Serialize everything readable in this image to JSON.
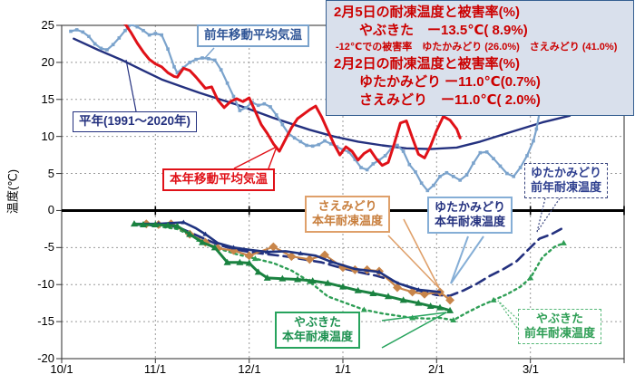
{
  "info_box": {
    "lines": [
      "2月5日の耐凍温度と被害率(%)",
      "やぶきた　ー13.5℃( 8.9%)",
      "-12℃での被害率　ゆたかみどり (26.0%)　さえみどり (41.0%)",
      "2月2日の耐凍温度と被害率(%)",
      "ゆたかみどり ー11.0℃(0.7%)",
      "さえみどり　ー11.0℃( 2.0%)"
    ]
  },
  "labels": {
    "prev_moving": "前年移動平均気温",
    "normal": "平年(1991～2020年)",
    "this_moving": "本年移動平均気温",
    "sae_this": "さえみどり\n本年耐凍温度",
    "yutaka_this": "ゆたかみどり\n本年耐凍温度",
    "yutaka_prev": "ゆたかみどり\n前年耐凍温度",
    "yabu_this": "やぶきた\n本年耐凍温度",
    "yabu_prev": "やぶきた\n前年耐凍温度"
  },
  "chart_data": {
    "type": "line",
    "ylabel": "温度(℃)",
    "ylim": [
      -20,
      25
    ],
    "grid": true,
    "x_axis": {
      "tick_labels": [
        "10/1",
        "11/1",
        "12/1",
        "1/1",
        "2/1",
        "3/1"
      ],
      "month_start_days": [
        0,
        31,
        61,
        92,
        123,
        151,
        182
      ]
    },
    "y_axis": {
      "label": "温度(℃)",
      "tick_labels": [
        "25",
        "20",
        "15",
        "10",
        "5",
        "0",
        "-5",
        "-10",
        "-15",
        "-20"
      ],
      "tick_values": [
        25,
        20,
        15,
        10,
        5,
        0,
        -5,
        -10,
        -15,
        -20
      ],
      "gridline_values": [
        20,
        15,
        10,
        5,
        -5,
        -10,
        -15
      ]
    },
    "series": [
      {
        "id": "heinen",
        "name": "平年(1991～2020年)",
        "color": "#24317F",
        "style": "solid",
        "width": 2.4,
        "marker": "none",
        "points": [
          [
            4,
            23.2
          ],
          [
            12,
            21.7
          ],
          [
            20,
            20.3
          ],
          [
            27,
            18.9
          ],
          [
            33,
            17.7
          ],
          [
            39,
            16.8
          ],
          [
            45,
            15.9
          ],
          [
            51,
            15.1
          ],
          [
            57,
            14.3
          ],
          [
            63,
            13.4
          ],
          [
            69,
            12.5
          ],
          [
            75,
            11.7
          ],
          [
            81,
            10.9
          ],
          [
            89,
            10.0
          ],
          [
            97,
            9.3
          ],
          [
            105,
            8.8
          ],
          [
            113,
            8.4
          ],
          [
            121,
            8.3
          ],
          [
            129,
            8.5
          ],
          [
            136,
            9.3
          ],
          [
            146,
            10.7
          ],
          [
            155,
            11.9
          ],
          [
            164,
            12.8
          ]
        ]
      },
      {
        "id": "prev_year_moving_avg",
        "name": "前年移動平均気温",
        "color": "#7BA3CC",
        "style": "solid",
        "width": 2.2,
        "marker": "square",
        "marker_size": 3.6,
        "marker_every": 1,
        "points": [
          [
            3,
            24.2
          ],
          [
            5,
            24.4
          ],
          [
            7,
            24.1
          ],
          [
            9,
            23.5
          ],
          [
            11,
            22.5
          ],
          [
            13,
            21.9
          ],
          [
            15,
            21.7
          ],
          [
            17,
            22.4
          ],
          [
            19,
            23.3
          ],
          [
            21,
            24.3
          ],
          [
            23,
            25.1
          ],
          [
            25,
            24.8
          ],
          [
            27,
            24.3
          ],
          [
            29,
            23.7
          ],
          [
            31,
            23.9
          ],
          [
            33,
            23.7
          ],
          [
            35,
            21.8
          ],
          [
            37,
            19.4
          ],
          [
            38,
            18.6
          ],
          [
            40,
            19.3
          ],
          [
            42,
            20.0
          ],
          [
            44,
            20.4
          ],
          [
            46,
            20.6
          ],
          [
            48,
            20.5
          ],
          [
            50,
            20.3
          ],
          [
            52,
            19.0
          ],
          [
            54,
            17.2
          ],
          [
            56,
            15.4
          ],
          [
            58,
            13.5
          ],
          [
            60,
            13.9
          ],
          [
            62,
            14.6
          ],
          [
            64,
            14.2
          ],
          [
            66,
            14.4
          ],
          [
            68,
            14.0
          ],
          [
            70,
            12.9
          ],
          [
            72,
            11.6
          ],
          [
            74,
            10.4
          ],
          [
            76,
            9.8
          ],
          [
            78,
            9.3
          ],
          [
            80,
            8.8
          ],
          [
            82,
            8.7
          ],
          [
            84,
            8.9
          ],
          [
            86,
            9.4
          ],
          [
            88,
            9.0
          ],
          [
            90,
            8.6
          ],
          [
            92,
            8.2
          ],
          [
            94,
            7.9
          ],
          [
            96,
            6.9
          ],
          [
            98,
            5.8
          ],
          [
            100,
            5.5
          ],
          [
            102,
            6.3
          ],
          [
            104,
            6.8
          ],
          [
            106,
            7.4
          ],
          [
            108,
            8.4
          ],
          [
            110,
            8.8
          ],
          [
            112,
            8.0
          ],
          [
            114,
            6.2
          ],
          [
            116,
            5.2
          ],
          [
            118,
            3.7
          ],
          [
            120,
            2.7
          ],
          [
            122,
            3.4
          ],
          [
            124,
            4.6
          ],
          [
            126,
            5.1
          ],
          [
            128,
            4.6
          ],
          [
            130,
            4.1
          ],
          [
            132,
            4.8
          ],
          [
            134,
            6.4
          ],
          [
            136,
            7.8
          ],
          [
            138,
            7.9
          ],
          [
            140,
            7.0
          ],
          [
            142,
            6.0
          ],
          [
            144,
            5.0
          ],
          [
            146,
            4.6
          ],
          [
            148,
            5.8
          ],
          [
            150,
            7.4
          ],
          [
            152,
            9.4
          ],
          [
            153,
            11.0
          ],
          [
            154,
            13.2
          ]
        ]
      },
      {
        "id": "this_year_moving_avg",
        "name": "本年移動平均気温",
        "color": "#E01118",
        "style": "solid",
        "width": 3,
        "marker": "none",
        "points": [
          [
            20,
            25.4
          ],
          [
            21,
            25.2
          ],
          [
            23,
            24.0
          ],
          [
            25,
            22.6
          ],
          [
            27,
            21.4
          ],
          [
            29,
            20.4
          ],
          [
            31,
            19.8
          ],
          [
            33,
            19.4
          ],
          [
            35,
            18.6
          ],
          [
            37,
            18.1
          ],
          [
            38,
            18.0
          ],
          [
            40,
            19.2
          ],
          [
            42,
            18.9
          ],
          [
            44,
            18.0
          ],
          [
            46,
            17.0
          ],
          [
            47,
            16.5
          ],
          [
            49,
            16.7
          ],
          [
            51,
            14.9
          ],
          [
            53,
            13.9
          ],
          [
            55,
            14.7
          ],
          [
            57,
            15.1
          ],
          [
            59,
            14.7
          ],
          [
            61,
            15.2
          ],
          [
            63,
            13.4
          ],
          [
            65,
            11.6
          ],
          [
            67,
            10.4
          ],
          [
            69,
            9.0
          ],
          [
            71,
            8.0
          ],
          [
            73,
            9.6
          ],
          [
            75,
            11.2
          ],
          [
            77,
            12.4
          ],
          [
            79,
            13.0
          ],
          [
            81,
            13.6
          ],
          [
            83,
            14.1
          ],
          [
            85,
            12.6
          ],
          [
            87,
            10.8
          ],
          [
            89,
            9.0
          ],
          [
            91,
            7.5
          ],
          [
            93,
            8.6
          ],
          [
            95,
            8.0
          ],
          [
            97,
            6.8
          ],
          [
            99,
            7.7
          ],
          [
            101,
            8.2
          ],
          [
            103,
            7.0
          ],
          [
            105,
            6.1
          ],
          [
            107,
            6.5
          ],
          [
            109,
            9.0
          ],
          [
            111,
            11.8
          ],
          [
            113,
            12.1
          ],
          [
            115,
            9.8
          ],
          [
            117,
            7.6
          ],
          [
            119,
            7.1
          ],
          [
            121,
            8.7
          ],
          [
            123,
            10.8
          ],
          [
            125,
            12.7
          ],
          [
            127,
            12.2
          ],
          [
            129,
            11.0
          ],
          [
            130,
            9.8
          ]
        ]
      },
      {
        "id": "yabukita_prev_year",
        "name": "やぶきた前年耐凍温度",
        "color": "#2E9E55",
        "style": "dotted",
        "width": 2.4,
        "marker": "triangle",
        "marker_size": 5,
        "marker_every": 3,
        "points": [
          [
            24,
            -1.8
          ],
          [
            31,
            -2.1
          ],
          [
            38,
            -2.5
          ],
          [
            45,
            -3.9
          ],
          [
            51,
            -5.1
          ],
          [
            57,
            -5.9
          ],
          [
            63,
            -6.5
          ],
          [
            69,
            -7.1
          ],
          [
            75,
            -8.1
          ],
          [
            81,
            -9.6
          ],
          [
            87,
            -11.6
          ],
          [
            93,
            -12.5
          ],
          [
            99,
            -13.4
          ],
          [
            105,
            -13.9
          ],
          [
            110,
            -14.2
          ],
          [
            115,
            -14.5
          ],
          [
            120,
            -14.6
          ],
          [
            124,
            -14.5
          ],
          [
            128,
            -14.8
          ],
          [
            132,
            -13.8
          ],
          [
            136,
            -12.9
          ],
          [
            140,
            -12.1
          ],
          [
            144,
            -11.3
          ],
          [
            148,
            -10.3
          ],
          [
            151,
            -9.1
          ],
          [
            155,
            -6.3
          ],
          [
            159,
            -4.9
          ],
          [
            162,
            -4.4
          ]
        ]
      },
      {
        "id": "yutakamidori_prev_year",
        "name": "ゆたかみどり前年耐凍温度",
        "color": "#24317F",
        "style": "dashed",
        "width": 2.6,
        "marker": "none",
        "points": [
          [
            24,
            -1.9
          ],
          [
            31,
            -2.0
          ],
          [
            38,
            -2.2
          ],
          [
            45,
            -3.5
          ],
          [
            51,
            -4.6
          ],
          [
            56,
            -5.2
          ],
          [
            61,
            -5.6
          ],
          [
            67,
            -5.9
          ],
          [
            73,
            -6.2
          ],
          [
            79,
            -6.6
          ],
          [
            85,
            -7.0
          ],
          [
            91,
            -7.7
          ],
          [
            97,
            -8.3
          ],
          [
            103,
            -8.8
          ],
          [
            108,
            -9.4
          ],
          [
            113,
            -10.2
          ],
          [
            118,
            -10.9
          ],
          [
            123,
            -11.4
          ],
          [
            127,
            -11.5
          ],
          [
            131,
            -10.8
          ],
          [
            135,
            -9.9
          ],
          [
            139,
            -8.8
          ],
          [
            143,
            -7.9
          ],
          [
            147,
            -6.8
          ],
          [
            151,
            -5.0
          ],
          [
            154,
            -3.8
          ],
          [
            158,
            -3.2
          ],
          [
            162,
            -2.3
          ]
        ]
      },
      {
        "id": "saemidori_this_year",
        "name": "さえみどり本年耐凍温度",
        "color": "#C8854A",
        "style": "solid",
        "width": 2.2,
        "marker": "diamond",
        "marker_size": 7,
        "marker_every": 1,
        "points": [
          [
            28,
            -1.8
          ],
          [
            32,
            -1.9
          ],
          [
            36,
            -1.8
          ],
          [
            42,
            -3.2
          ],
          [
            47,
            -4.3
          ],
          [
            51,
            -5.1
          ],
          [
            56,
            -5.4
          ],
          [
            61,
            -6.1
          ],
          [
            69,
            -4.9
          ],
          [
            75,
            -6.2
          ],
          [
            81,
            -6.6
          ],
          [
            86,
            -6.0
          ],
          [
            92,
            -7.7
          ],
          [
            96,
            -8.0
          ],
          [
            100,
            -8.0
          ],
          [
            104,
            -8.2
          ],
          [
            110,
            -10.4
          ],
          [
            115,
            -11.0
          ],
          [
            119,
            -11.3
          ],
          [
            124,
            -11.0
          ],
          [
            127,
            -12.1
          ]
        ]
      },
      {
        "id": "yutakamidori_this_year",
        "name": "ゆたかみどり本年耐凍温度",
        "color": "#1F3380",
        "style": "solid",
        "width": 2.6,
        "marker": "triangle",
        "marker_size": 4,
        "marker_every": 2,
        "points": [
          [
            24,
            -1.8
          ],
          [
            28,
            -1.8
          ],
          [
            32,
            -1.8
          ],
          [
            36,
            -1.7
          ],
          [
            40,
            -1.6
          ],
          [
            44,
            -2.4
          ],
          [
            47,
            -3.2
          ],
          [
            51,
            -4.4
          ],
          [
            56,
            -5.0
          ],
          [
            61,
            -5.3
          ],
          [
            67,
            -5.6
          ],
          [
            73,
            -5.5
          ],
          [
            78,
            -5.8
          ],
          [
            83,
            -6.1
          ],
          [
            88,
            -6.9
          ],
          [
            96,
            -7.9
          ],
          [
            104,
            -8.3
          ],
          [
            110,
            -9.8
          ],
          [
            117,
            -10.7
          ],
          [
            124,
            -11.0
          ]
        ]
      },
      {
        "id": "yabukita_this_year",
        "name": "やぶきた本年耐凍温度",
        "color": "#1A8240",
        "style": "solid",
        "width": 3,
        "marker": "triangle",
        "marker_size": 6,
        "marker_every": 1,
        "points": [
          [
            24,
            -1.8
          ],
          [
            27,
            -1.9
          ],
          [
            31,
            -1.9
          ],
          [
            35,
            -2.0
          ],
          [
            38,
            -2.1
          ],
          [
            42,
            -3.2
          ],
          [
            46,
            -4.3
          ],
          [
            50,
            -5.0
          ],
          [
            54,
            -7.0
          ],
          [
            58,
            -7.0
          ],
          [
            61,
            -7.1
          ],
          [
            64,
            -8.3
          ],
          [
            67,
            -9.1
          ],
          [
            72,
            -9.2
          ],
          [
            77,
            -9.3
          ],
          [
            82,
            -9.5
          ],
          [
            87,
            -9.8
          ],
          [
            92,
            -10.3
          ],
          [
            97,
            -10.8
          ],
          [
            102,
            -11.2
          ],
          [
            107,
            -11.6
          ],
          [
            112,
            -12.1
          ],
          [
            117,
            -12.5
          ],
          [
            121,
            -12.9
          ],
          [
            124,
            -13.1
          ],
          [
            127,
            -13.5
          ]
        ]
      }
    ]
  }
}
